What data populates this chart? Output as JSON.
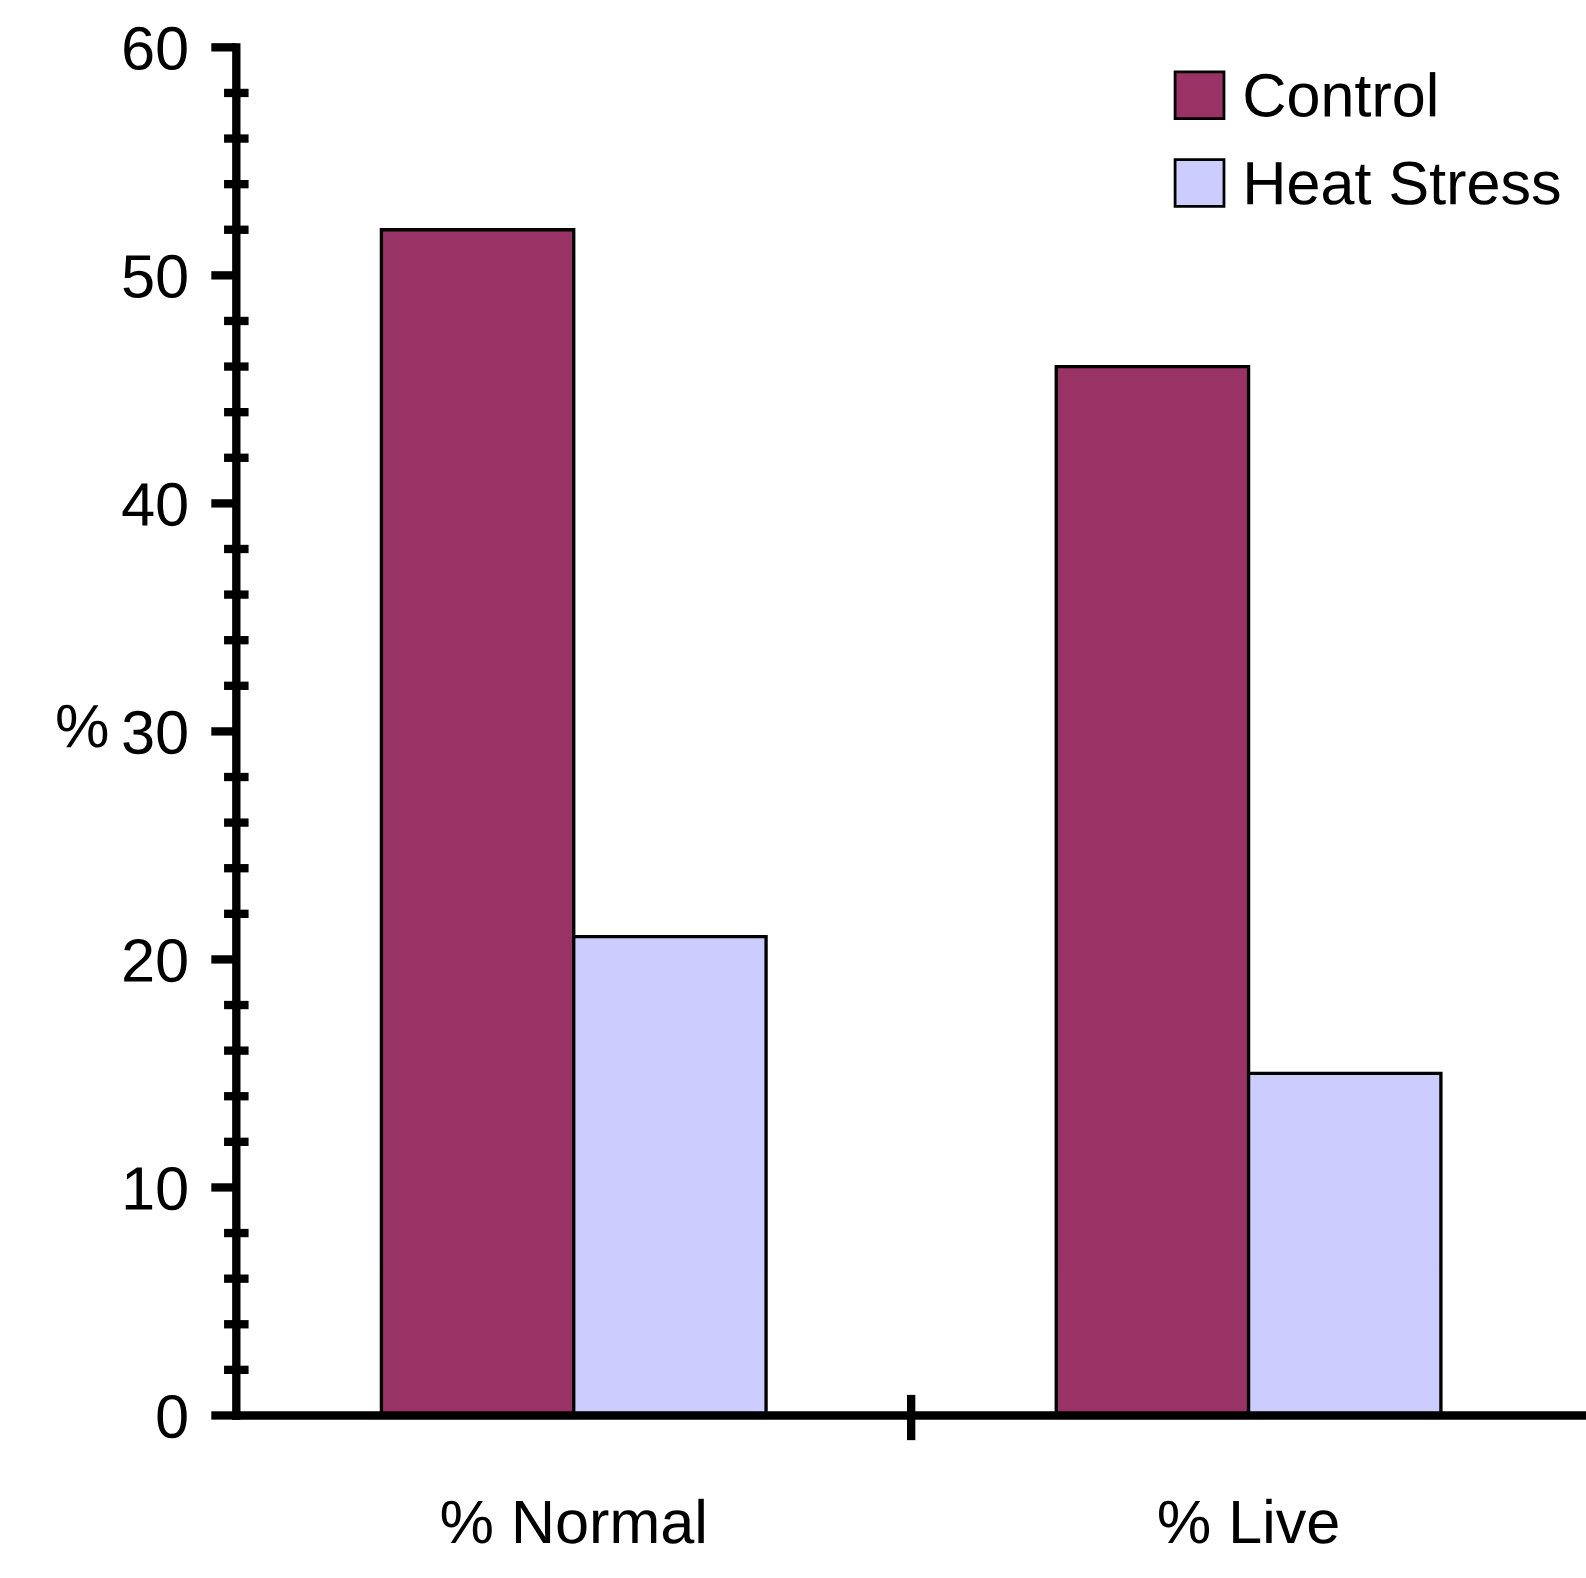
{
  "chart_data": {
    "type": "bar",
    "ylabel": "%",
    "categories": [
      "% Normal",
      "% Live"
    ],
    "series": [
      {
        "name": "Control",
        "color": "#993366",
        "values": [
          52,
          46
        ]
      },
      {
        "name": "Heat Stress",
        "color": "#ccccff",
        "values": [
          21,
          15
        ]
      }
    ],
    "ylim": [
      0,
      60
    ],
    "yticks": [
      0,
      10,
      20,
      30,
      40,
      50,
      60
    ],
    "grid": false,
    "legend": "top right"
  }
}
